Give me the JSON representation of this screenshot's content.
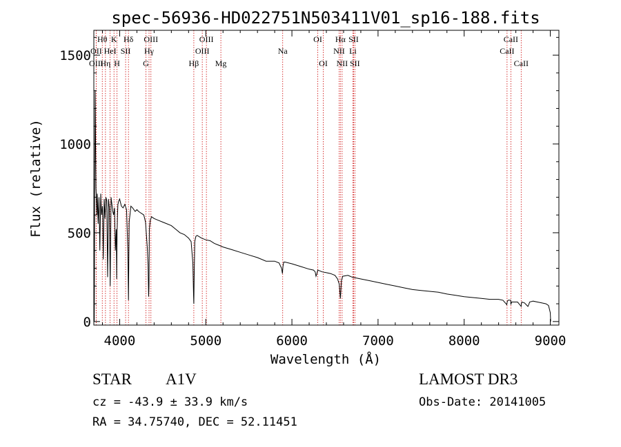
{
  "chart_data": {
    "type": "line",
    "title": "spec-56936-HD022751N503411V01_sp16-188.fits",
    "xlabel": "Wavelength (Å)",
    "ylabel": "Flux (relative)",
    "xlim": [
      3700,
      9100
    ],
    "ylim": [
      -20,
      1640
    ],
    "xticks": [
      4000,
      5000,
      6000,
      7000,
      8000,
      9000
    ],
    "yticks": [
      0,
      500,
      1000,
      1500
    ],
    "xtick_labels": [
      "4000",
      "5000",
      "6000",
      "7000",
      "8000",
      "9000"
    ],
    "ytick_labels": [
      "0",
      "500",
      "1000",
      "1500"
    ],
    "grid": false,
    "series": [
      {
        "name": "spectrum",
        "x": [
          3705,
          3710,
          3715,
          3720,
          3725,
          3730,
          3735,
          3740,
          3750,
          3760,
          3770,
          3780,
          3790,
          3800,
          3810,
          3820,
          3830,
          3840,
          3850,
          3860,
          3870,
          3880,
          3890,
          3900,
          3910,
          3920,
          3930,
          3940,
          3950,
          3960,
          3965,
          3970,
          3975,
          3980,
          3990,
          4000,
          4020,
          4040,
          4060,
          4080,
          4095,
          4102,
          4110,
          4130,
          4150,
          4180,
          4200,
          4220,
          4250,
          4280,
          4300,
          4320,
          4330,
          4336,
          4340,
          4345,
          4355,
          4370,
          4400,
          4450,
          4500,
          4550,
          4600,
          4650,
          4700,
          4750,
          4800,
          4830,
          4850,
          4858,
          4861,
          4865,
          4872,
          4885,
          4900,
          4950,
          5000,
          5050,
          5100,
          5150,
          5200,
          5300,
          5400,
          5500,
          5600,
          5700,
          5800,
          5850,
          5880,
          5890,
          5896,
          5905,
          5920,
          6000,
          6100,
          6200,
          6250,
          6270,
          6280,
          6290,
          6300,
          6350,
          6400,
          6450,
          6500,
          6530,
          6550,
          6558,
          6563,
          6568,
          6575,
          6590,
          6650,
          6700,
          6800,
          6900,
          7000,
          7100,
          7200,
          7300,
          7400,
          7500,
          7600,
          7700,
          7800,
          7900,
          8000,
          8100,
          8200,
          8300,
          8400,
          8450,
          8495,
          8500,
          8510,
          8540,
          8542,
          8550,
          8620,
          8662,
          8665,
          8670,
          8700,
          8740,
          8750,
          8760,
          8800,
          8850,
          8900,
          8950,
          8980,
          9000,
          9005
        ],
        "values": [
          0,
          700,
          1300,
          1000,
          750,
          700,
          600,
          720,
          550,
          700,
          400,
          720,
          600,
          650,
          350,
          690,
          580,
          700,
          680,
          250,
          690,
          640,
          200,
          700,
          660,
          620,
          600,
          640,
          400,
          520,
          240,
          500,
          600,
          660,
          680,
          690,
          650,
          640,
          660,
          630,
          400,
          120,
          560,
          650,
          640,
          620,
          630,
          620,
          610,
          600,
          560,
          420,
          320,
          140,
          200,
          520,
          570,
          590,
          580,
          570,
          560,
          550,
          540,
          520,
          500,
          490,
          470,
          450,
          330,
          150,
          100,
          250,
          450,
          480,
          485,
          470,
          460,
          455,
          440,
          430,
          420,
          405,
          390,
          375,
          360,
          340,
          340,
          330,
          300,
          270,
          310,
          335,
          335,
          325,
          310,
          295,
          290,
          280,
          255,
          270,
          290,
          280,
          275,
          270,
          260,
          240,
          210,
          160,
          130,
          170,
          230,
          255,
          260,
          250,
          240,
          230,
          220,
          210,
          200,
          190,
          180,
          175,
          170,
          165,
          155,
          148,
          140,
          135,
          130,
          125,
          125,
          120,
          95,
          112,
          120,
          120,
          95,
          110,
          110,
          85,
          102,
          110,
          105,
          85,
          95,
          110,
          115,
          110,
          105,
          100,
          90,
          50,
          0
        ]
      }
    ],
    "spectral_lines": [
      {
        "label": "Hθ",
        "x": 3798,
        "row": 1
      },
      {
        "label": "OII",
        "x": 3727,
        "row": 2
      },
      {
        "label": "OIII",
        "x": 3727,
        "row": 3
      },
      {
        "label": "Hη",
        "x": 3835,
        "row": 3
      },
      {
        "label": "HeI",
        "x": 3889,
        "row": 2
      },
      {
        "label": "K",
        "x": 3934,
        "row": 1
      },
      {
        "label": "H",
        "x": 3969,
        "row": 3
      },
      {
        "label": "SII",
        "x": 4069,
        "row": 2
      },
      {
        "label": "Hδ",
        "x": 4102,
        "row": 1
      },
      {
        "label": "OIII",
        "x": 4363,
        "row": 1
      },
      {
        "label": "Hγ",
        "x": 4341,
        "row": 2
      },
      {
        "label": "G",
        "x": 4305,
        "row": 3
      },
      {
        "label": "OIII",
        "x": 5007,
        "row": 1
      },
      {
        "label": "OIII",
        "x": 4959,
        "row": 2
      },
      {
        "label": "Hβ",
        "x": 4861,
        "row": 3
      },
      {
        "label": "Mg",
        "x": 5175,
        "row": 3
      },
      {
        "label": "Na",
        "x": 5893,
        "row": 2
      },
      {
        "label": "OI",
        "x": 6300,
        "row": 1
      },
      {
        "label": "OI",
        "x": 6364,
        "row": 3
      },
      {
        "label": "Hα",
        "x": 6563,
        "row": 1
      },
      {
        "label": "SII",
        "x": 6716,
        "row": 1
      },
      {
        "label": "NII",
        "x": 6548,
        "row": 2
      },
      {
        "label": "Li",
        "x": 6708,
        "row": 2
      },
      {
        "label": "NII",
        "x": 6583,
        "row": 3
      },
      {
        "label": "SII",
        "x": 6731,
        "row": 3
      },
      {
        "label": "CaII",
        "x": 8542,
        "row": 1
      },
      {
        "label": "CaII",
        "x": 8498,
        "row": 2
      },
      {
        "label": "CaII",
        "x": 8662,
        "row": 3
      }
    ]
  },
  "info": {
    "class_label": "STAR",
    "subclass_label": "A1V",
    "survey": "LAMOST DR3",
    "cz": "cz = -43.9 ± 33.9 km/s",
    "obs_date": "Obs-Date: 20141005",
    "coords": "RA =  34.75740, DEC =  52.11451"
  },
  "colors": {
    "line": "#000000",
    "marker": "#cc0000",
    "axis": "#000000"
  }
}
